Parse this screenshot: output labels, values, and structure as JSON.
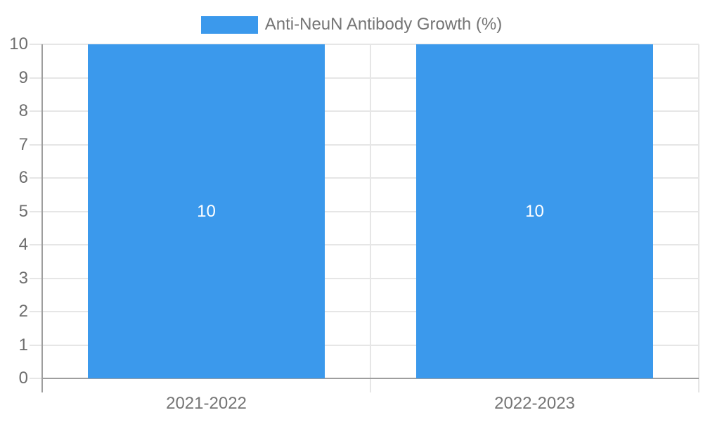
{
  "chart_data": {
    "type": "bar",
    "title": "",
    "legend": {
      "label": "Anti-NeuN Antibody Growth (%)",
      "position": "top"
    },
    "categories": [
      "2021-2022",
      "2022-2023"
    ],
    "series": [
      {
        "name": "Anti-NeuN Antibody Growth (%)",
        "values": [
          10,
          10
        ],
        "color": "#3B99EC"
      }
    ],
    "bar_value_labels": [
      "10",
      "10"
    ],
    "ylim": [
      0,
      10
    ],
    "ytick_step": 1,
    "yticks": [
      0,
      1,
      2,
      3,
      4,
      5,
      6,
      7,
      8,
      9,
      10
    ],
    "grid": true,
    "colors": {
      "bar": "#3B99EC",
      "grid_line": "#E6E6E6",
      "axis_line": "#9E9E9E",
      "tick_text": "#6E6E6E",
      "x_label_text": "#757575",
      "legend_text": "#757575",
      "bar_label_text": "#FFFFFF",
      "background": "#FFFFFF"
    }
  }
}
